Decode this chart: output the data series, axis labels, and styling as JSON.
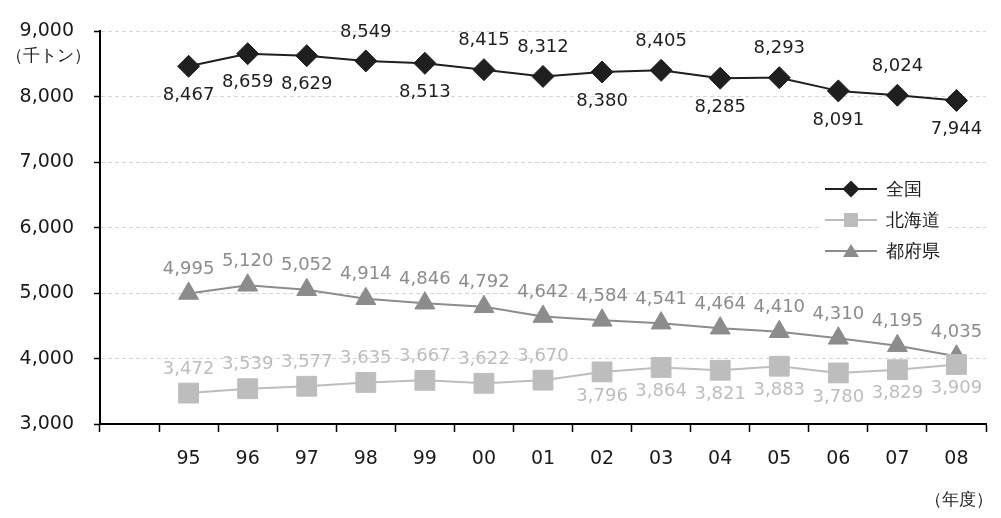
{
  "chart_data": {
    "type": "line",
    "ylabel": "（千トン）",
    "xlabel": "（年度）",
    "categories": [
      null,
      "95",
      "96",
      "97",
      "98",
      "99",
      "00",
      "01",
      "02",
      "03",
      "04",
      "05",
      "06",
      "07",
      "08"
    ],
    "series": [
      {
        "name": "全国",
        "color": "#1f1f1f",
        "marker": "diamond",
        "values": [
          null,
          8467,
          8659,
          8629,
          8549,
          8513,
          8415,
          8312,
          8380,
          8405,
          8285,
          8293,
          8091,
          8024,
          7944
        ],
        "value_labels": [
          null,
          "8,467",
          "8,659",
          "8,629",
          "8,549",
          "8,513",
          "8,415",
          "8,312",
          "8,380",
          "8,405",
          "8,285",
          "8,293",
          "8,091",
          "8,024",
          "7,944"
        ]
      },
      {
        "name": "北海道",
        "color": "#bdbdbd",
        "marker": "square",
        "values": [
          null,
          3472,
          3539,
          3577,
          3635,
          3667,
          3622,
          3670,
          3796,
          3864,
          3821,
          3883,
          3780,
          3829,
          3909
        ],
        "value_labels": [
          null,
          "3,472",
          "3,539",
          "3,577",
          "3,635",
          "3,667",
          "3,622",
          "3,670",
          "3,796",
          "3,864",
          "3,821",
          "3,883",
          "3,780",
          "3,829",
          "3,909"
        ]
      },
      {
        "name": "都府県",
        "color": "#8c8c8c",
        "marker": "triangle",
        "values": [
          null,
          4995,
          5120,
          5052,
          4914,
          4846,
          4792,
          4642,
          4584,
          4541,
          4464,
          4410,
          4310,
          4195,
          4035
        ],
        "value_labels": [
          null,
          "4,995",
          "5,120",
          "5,052",
          "4,914",
          "4,846",
          "4,792",
          "4,642",
          "4,584",
          "4,541",
          "4,464",
          "4,410",
          "4,310",
          "4,195",
          "4,035"
        ]
      }
    ],
    "ylim": [
      3000,
      9000
    ],
    "yticks": [
      {
        "value": 3000,
        "label": "3,000"
      },
      {
        "value": 4000,
        "label": "4,000"
      },
      {
        "value": 5000,
        "label": "5,000"
      },
      {
        "value": 6000,
        "label": "6,000"
      },
      {
        "value": 7000,
        "label": "7,000"
      },
      {
        "value": 8000,
        "label": "8,000"
      },
      {
        "value": 9000,
        "label": "9,000"
      }
    ],
    "grid": "y",
    "legend": "right"
  }
}
